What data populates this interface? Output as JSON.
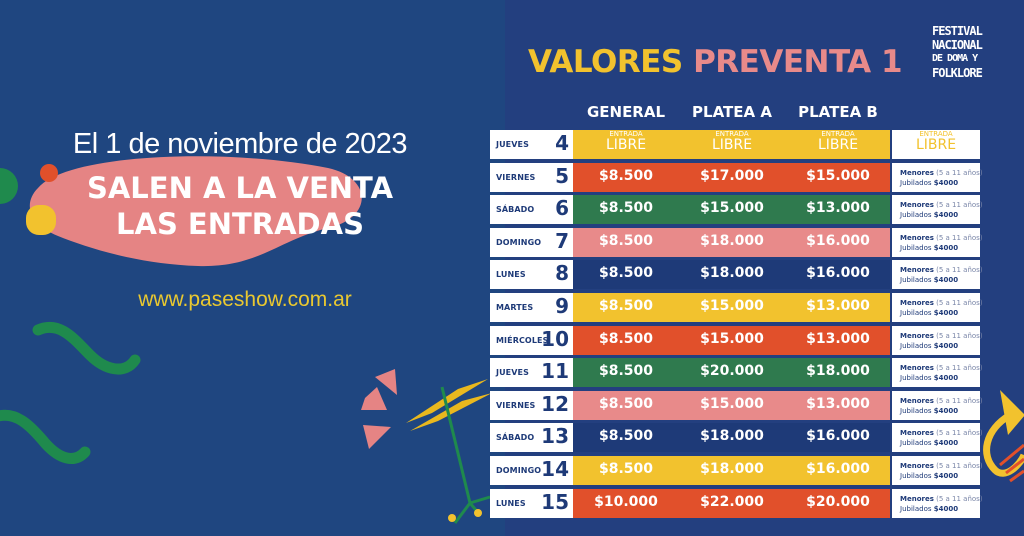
{
  "left": {
    "date_line": "El 1 de noviembre de 2023",
    "headline_1": "SALEN A LA VENTA",
    "headline_2": "LAS ENTRADAS",
    "url": "www.paseshow.com.ar"
  },
  "header": {
    "title_part1": "VALORES",
    "title_part2": "PREVENTA 1",
    "logo_lines": [
      "FESTIVAL",
      "NACIONAL",
      "DE DOMA Y",
      "FOLKLORE"
    ]
  },
  "columns": [
    "GENERAL",
    "PLATEA A",
    "PLATEA B"
  ],
  "colors": {
    "background": "#1f4680",
    "yellow": "#f2c22e",
    "red": "#e1502b",
    "green": "#2f7a4e",
    "pink": "#e88a8a",
    "navy": "#1e3a78"
  },
  "free_label": {
    "top": "ENTRADA",
    "bottom": "LIBRE"
  },
  "note": {
    "line1_bold": "Menores",
    "line1_rest": "(5 a 11 años)",
    "line2_label": "Jubilados",
    "line2_price": "$4000"
  },
  "rows": [
    {
      "day": "JUEVES",
      "num": "4",
      "color": "#f2c22e",
      "free": true,
      "prices": [
        "ENTRADA LIBRE",
        "ENTRADA LIBRE",
        "ENTRADA LIBRE"
      ]
    },
    {
      "day": "VIERNES",
      "num": "5",
      "color": "#e1502b",
      "free": false,
      "prices": [
        "$8.500",
        "$17.000",
        "$15.000"
      ]
    },
    {
      "day": "SÁBADO",
      "num": "6",
      "color": "#2f7a4e",
      "free": false,
      "prices": [
        "$8.500",
        "$15.000",
        "$13.000"
      ]
    },
    {
      "day": "DOMINGO",
      "num": "7",
      "color": "#e88a8a",
      "free": false,
      "prices": [
        "$8.500",
        "$18.000",
        "$16.000"
      ]
    },
    {
      "day": "LUNES",
      "num": "8",
      "color": "#1e3a78",
      "free": false,
      "prices": [
        "$8.500",
        "$18.000",
        "$16.000"
      ]
    },
    {
      "day": "MARTES",
      "num": "9",
      "color": "#f2c22e",
      "free": false,
      "prices": [
        "$8.500",
        "$15.000",
        "$13.000"
      ]
    },
    {
      "day": "MIÉRCOLES",
      "num": "10",
      "color": "#e1502b",
      "free": false,
      "prices": [
        "$8.500",
        "$15.000",
        "$13.000"
      ]
    },
    {
      "day": "JUEVES",
      "num": "11",
      "color": "#2f7a4e",
      "free": false,
      "prices": [
        "$8.500",
        "$20.000",
        "$18.000"
      ]
    },
    {
      "day": "VIERNES",
      "num": "12",
      "color": "#e88a8a",
      "free": false,
      "prices": [
        "$8.500",
        "$15.000",
        "$13.000"
      ]
    },
    {
      "day": "SÁBADO",
      "num": "13",
      "color": "#1e3a78",
      "free": false,
      "prices": [
        "$8.500",
        "$18.000",
        "$16.000"
      ]
    },
    {
      "day": "DOMINGO",
      "num": "14",
      "color": "#f2c22e",
      "free": false,
      "prices": [
        "$8.500",
        "$18.000",
        "$16.000"
      ]
    },
    {
      "day": "LUNES",
      "num": "15",
      "color": "#e1502b",
      "free": false,
      "prices": [
        "$10.000",
        "$22.000",
        "$20.000"
      ]
    }
  ]
}
